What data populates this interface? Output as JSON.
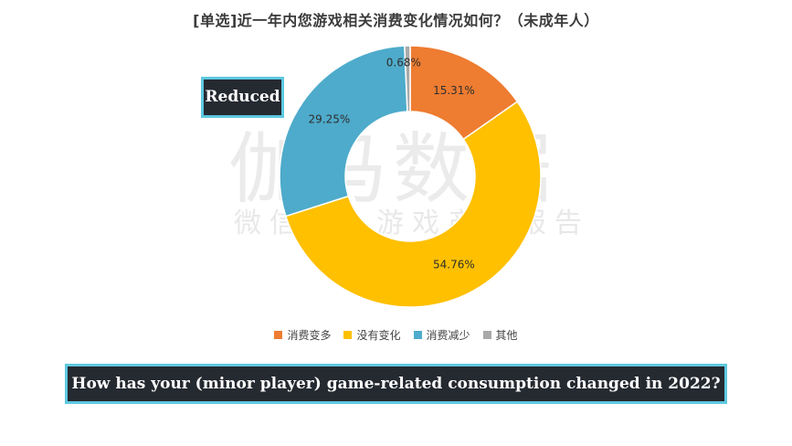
{
  "title": "[单选]近一年内您游戏相关消费变化情况如何？（未成年人）",
  "watermark": {
    "main": "伽马数据",
    "sub": "微信号：游戏产业报告"
  },
  "colors": {
    "increase": "#ee7c31",
    "unchanged": "#ffc000",
    "decrease": "#4eabcb",
    "other": "#a9a9a9",
    "caption_bg": "#252a31",
    "caption_border": "#5ec8e0"
  },
  "chart_data": {
    "type": "pie",
    "variant": "donut",
    "title": "[单选]近一年内您游戏相关消费变化情况如何？（未成年人）",
    "legend_position": "bottom",
    "slices": [
      {
        "name": "消费变多",
        "value": 15.31,
        "label": "15.31%",
        "color": "#ee7c31"
      },
      {
        "name": "没有变化",
        "value": 54.76,
        "label": "54.76%",
        "color": "#ffc000"
      },
      {
        "name": "消费减少",
        "value": 29.25,
        "label": "29.25%",
        "color": "#4eabcb"
      },
      {
        "name": "其他",
        "value": 0.68,
        "label": "0.68%",
        "color": "#a9a9a9"
      }
    ]
  },
  "legend": [
    {
      "name": "消费变多",
      "color": "#ee7c31"
    },
    {
      "name": "没有变化",
      "color": "#ffc000"
    },
    {
      "name": "消费减少",
      "color": "#4eabcb"
    },
    {
      "name": "其他",
      "color": "#a9a9a9"
    }
  ],
  "captions": {
    "reduced": "Reduced",
    "question": "How has your (minor player) game-related consumption changed in 2022?"
  }
}
